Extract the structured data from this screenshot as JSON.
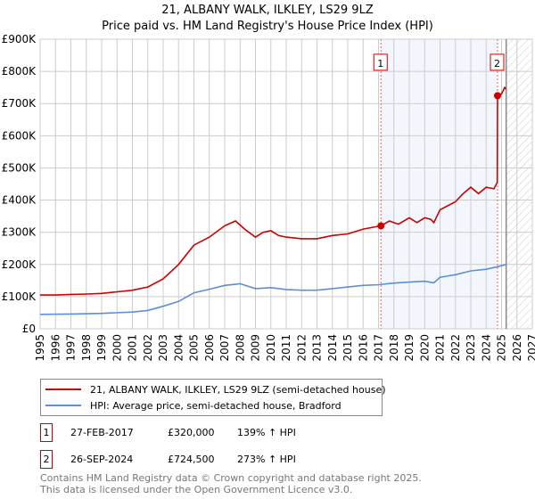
{
  "title": "21, ALBANY WALK, ILKLEY, LS29 9LZ",
  "subtitle": "Price paid vs. HM Land Registry's House Price Index (HPI)",
  "chart_data": {
    "type": "line",
    "xlim": [
      1995,
      2027
    ],
    "ylim": [
      0,
      900000
    ],
    "x_ticks": [
      "1995",
      "1996",
      "1997",
      "1998",
      "1999",
      "2000",
      "2001",
      "2002",
      "2003",
      "2004",
      "2005",
      "2006",
      "2007",
      "2008",
      "2009",
      "2010",
      "2011",
      "2012",
      "2013",
      "2014",
      "2015",
      "2016",
      "2017",
      "2018",
      "2019",
      "2020",
      "2021",
      "2022",
      "2023",
      "2024",
      "2025",
      "2026",
      "2027"
    ],
    "y_ticks": [
      {
        "v": 0,
        "label": "£0"
      },
      {
        "v": 100000,
        "label": "£100K"
      },
      {
        "v": 200000,
        "label": "£200K"
      },
      {
        "v": 300000,
        "label": "£300K"
      },
      {
        "v": 400000,
        "label": "£400K"
      },
      {
        "v": 500000,
        "label": "£500K"
      },
      {
        "v": 600000,
        "label": "£600K"
      },
      {
        "v": 700000,
        "label": "£700K"
      },
      {
        "v": 800000,
        "label": "£800K"
      },
      {
        "v": 900000,
        "label": "£900K"
      }
    ],
    "grid": true,
    "series": [
      {
        "name": "21, ALBANY WALK, ILKLEY, LS29 9LZ (semi-detached house)",
        "color": "#cc0000",
        "x": [
          1995,
          1996,
          1997,
          1998,
          1999,
          2000,
          2001,
          2002,
          2003,
          2004,
          2005,
          2006,
          2007,
          2007.7,
          2008.3,
          2009,
          2009.5,
          2010,
          2010.5,
          2011,
          2012,
          2013,
          2014,
          2015,
          2016,
          2017.16,
          2017.7,
          2018.3,
          2019,
          2019.5,
          2020,
          2020.4,
          2020.6,
          2021,
          2022,
          2022.5,
          2023,
          2023.5,
          2024,
          2024.5,
          2024.72,
          2024.74,
          2025.0,
          2025.2,
          2025.3
        ],
        "y": [
          105000,
          105000,
          107000,
          108000,
          110000,
          115000,
          120000,
          130000,
          155000,
          200000,
          260000,
          285000,
          320000,
          335000,
          310000,
          285000,
          300000,
          305000,
          290000,
          285000,
          280000,
          280000,
          290000,
          295000,
          310000,
          320000,
          335000,
          325000,
          345000,
          330000,
          345000,
          340000,
          330000,
          370000,
          395000,
          420000,
          440000,
          420000,
          440000,
          435000,
          455000,
          724500,
          730000,
          750000,
          745000
        ]
      },
      {
        "name": "HPI: Average price, semi-detached house, Bradford",
        "color": "#5b8fd6",
        "x": [
          1995,
          1997,
          1999,
          2001,
          2002,
          2003,
          2004,
          2005,
          2006,
          2007,
          2008,
          2009,
          2010,
          2011,
          2012,
          2013,
          2014,
          2015,
          2016,
          2017,
          2018,
          2019,
          2020,
          2020.6,
          2021,
          2022,
          2023,
          2024,
          2024.74,
          2025.3
        ],
        "y": [
          45000,
          46000,
          48000,
          52000,
          57000,
          70000,
          85000,
          112000,
          123000,
          135000,
          140000,
          125000,
          128000,
          122000,
          120000,
          120000,
          125000,
          130000,
          135000,
          137000,
          142000,
          145000,
          148000,
          143000,
          160000,
          168000,
          180000,
          185000,
          193000,
          200000
        ]
      }
    ],
    "sales": [
      {
        "label": "1",
        "x": 2017.16,
        "y": 320000
      },
      {
        "label": "2",
        "x": 2024.74,
        "y": 724500
      }
    ],
    "data_end": 2025.3
  },
  "legend": {
    "red": "21, ALBANY WALK, ILKLEY, LS29 9LZ (semi-detached house)",
    "blue": "HPI: Average price, semi-detached house, Bradford"
  },
  "transactions": [
    {
      "num": "1",
      "date": "27-FEB-2017",
      "price": "£320,000",
      "hpi": "139% ↑ HPI"
    },
    {
      "num": "2",
      "date": "26-SEP-2024",
      "price": "£724,500",
      "hpi": "273% ↑ HPI"
    }
  ],
  "footer": [
    "Contains HM Land Registry data © Crown copyright and database right 2025.",
    "This data is licensed under the Open Government Licence v3.0."
  ]
}
